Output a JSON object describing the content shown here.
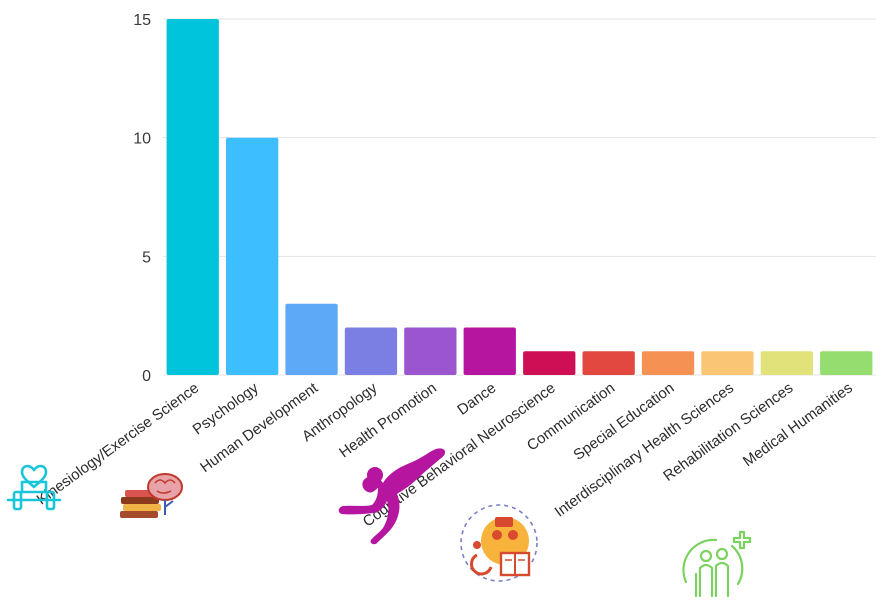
{
  "chart_data": {
    "type": "bar",
    "title": "",
    "xlabel": "",
    "ylabel": "",
    "ylim": [
      0,
      15
    ],
    "yticks": [
      0,
      5,
      10,
      15
    ],
    "grid": true,
    "legend": "none",
    "categories": [
      "Kinesiology/Exercise Science",
      "Psychology",
      "Human Development",
      "Anthropology",
      "Health Promotion",
      "Dance",
      "Cognitive Behavioral Neuroscience",
      "Communication",
      "Special Education",
      "Interdisciplinary Health Sciences",
      "Rehabilitation Sciences",
      "Medical Humanities"
    ],
    "values": [
      15,
      10,
      3,
      2,
      2,
      2,
      1,
      1,
      1,
      1,
      1,
      1
    ],
    "colors": [
      "#00c4dc",
      "#3dbfff",
      "#5ea8f8",
      "#7b7fe3",
      "#9a55cf",
      "#b5159f",
      "#cf0f55",
      "#e2483f",
      "#f59153",
      "#fac674",
      "#e2e27a",
      "#94dd6e"
    ]
  },
  "icons": [
    {
      "name": "dumbbell-heart-icon",
      "color": "#19c6d9"
    },
    {
      "name": "brain-books-icon",
      "color": "#c0392b"
    },
    {
      "name": "dancer-icon",
      "color": "#b5159f"
    },
    {
      "name": "special-education-icon",
      "color": "#f3a93a"
    },
    {
      "name": "rehabilitation-icon",
      "color": "#7bd35f"
    }
  ]
}
